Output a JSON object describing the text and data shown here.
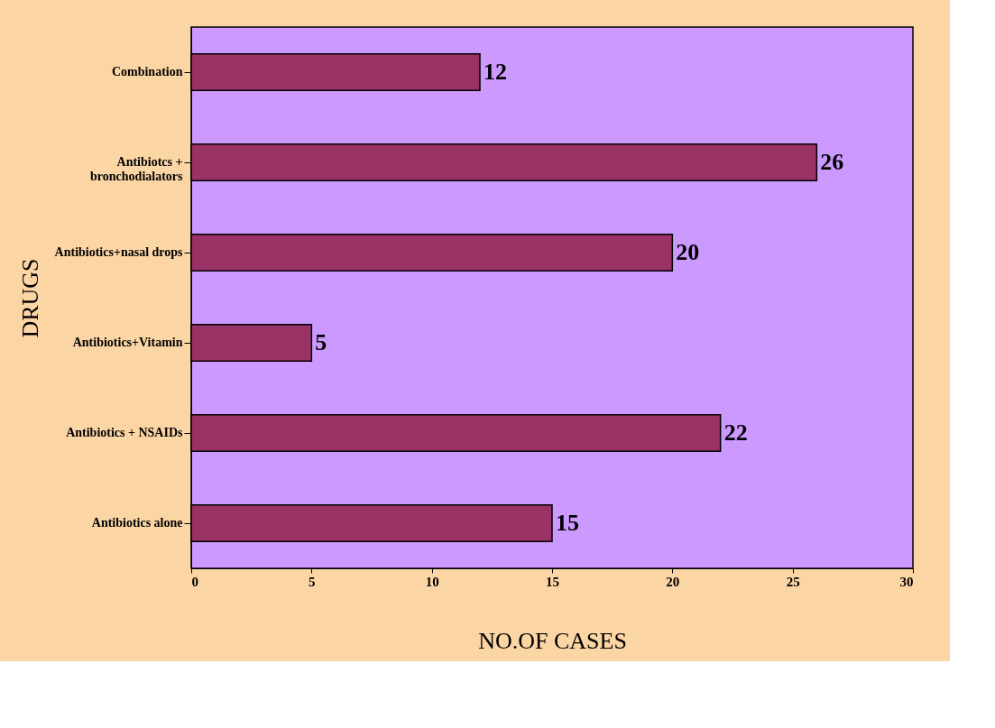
{
  "chart_data": {
    "type": "bar",
    "orientation": "horizontal",
    "xlabel": "NO.OF CASES",
    "ylabel": "DRUGS",
    "categories": [
      "Combination",
      "Antibiotcs +\nbronchodialators",
      "Antibiotics+nasal drops",
      "Antibiotics+Vitamin",
      "Antibiotics + NSAIDs",
      "Antibiotics alone"
    ],
    "values": [
      12,
      26,
      20,
      5,
      22,
      15
    ],
    "color": "#993366",
    "xlim": [
      0,
      30
    ],
    "xticks": [
      0,
      5,
      10,
      15,
      20,
      25,
      30
    ],
    "grid": false,
    "data_labels": true
  }
}
